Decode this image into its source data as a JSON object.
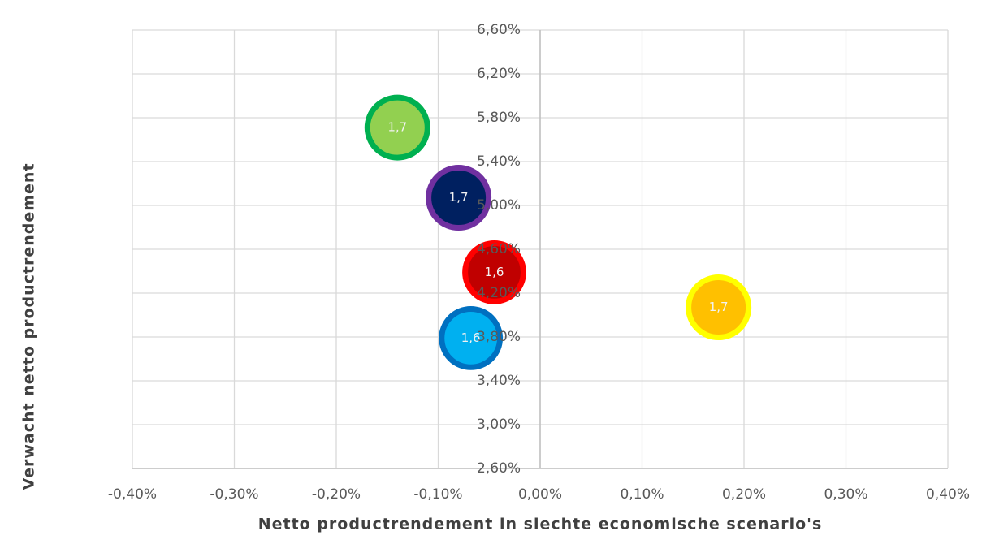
{
  "chart_data": {
    "type": "bubble",
    "x_label": "Netto productrendement in slechte economische scenario's",
    "y_label": "Verwacht netto productrendement",
    "x": [
      -0.14,
      -0.08,
      -0.045,
      -0.068,
      0.175
    ],
    "values": [
      5.71,
      5.07,
      4.39,
      3.79,
      4.07
    ],
    "sizes": [
      1.7,
      1.7,
      1.6,
      1.6,
      1.7
    ],
    "size_labels": [
      "1,7",
      "1,7",
      "1,6",
      "1,6",
      "1,7"
    ],
    "colors": [
      "#92d050",
      "#002060",
      "#c00000",
      "#00b0f0",
      "#ffc000"
    ],
    "edge_colors": [
      "#00b050",
      "#7030a0",
      "#ff0000",
      "#0070c0",
      "#ffff00"
    ],
    "xlim": [
      -0.4,
      0.4
    ],
    "xticks": [
      {
        "value": -0.4,
        "label": "-0,40%"
      },
      {
        "value": -0.3,
        "label": "-0,30%"
      },
      {
        "value": -0.2,
        "label": "-0,20%"
      },
      {
        "value": -0.1,
        "label": "-0,10%"
      },
      {
        "value": 0,
        "label": "0,00%"
      },
      {
        "value": 0.1,
        "label": "0,10%"
      },
      {
        "value": 0.2,
        "label": "0,20%"
      },
      {
        "value": 0.3,
        "label": "0,30%"
      },
      {
        "value": 0.4,
        "label": "0,40%"
      }
    ],
    "ylim": [
      2.6,
      6.6
    ],
    "yticks": [
      {
        "value": 2.6,
        "label": "2,60%"
      },
      {
        "value": 3.0,
        "label": "3,00%"
      },
      {
        "value": 3.4,
        "label": "3,40%"
      },
      {
        "value": 3.8,
        "label": "3,80%"
      },
      {
        "value": 4.2,
        "label": "4,20%"
      },
      {
        "value": 4.6,
        "label": "4,60%"
      },
      {
        "value": 5.0,
        "label": "5,00%"
      },
      {
        "value": 5.4,
        "label": "5,40%"
      },
      {
        "value": 5.8,
        "label": "5,80%"
      },
      {
        "value": 6.2,
        "label": "6,20%"
      },
      {
        "value": 6.6,
        "label": "6,60%"
      }
    ],
    "grid": true
  }
}
